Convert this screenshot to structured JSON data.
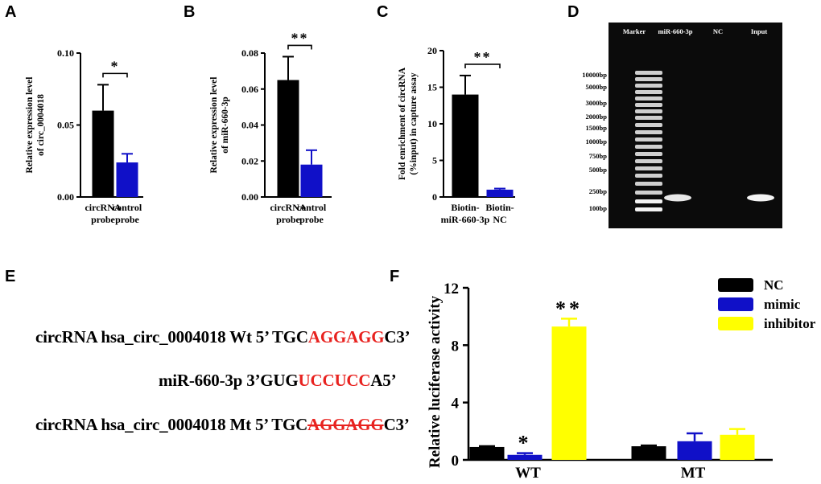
{
  "panel_labels": [
    "A",
    "B",
    "C",
    "D",
    "E",
    "F"
  ],
  "colors": {
    "black": "#000000",
    "blue": "#1010c8",
    "yellow": "#ffff00",
    "red": "#e8221f"
  },
  "chart_data": [
    {
      "panel": "A",
      "type": "bar",
      "categories": [
        [
          "circRNA",
          "probe"
        ],
        [
          "control",
          "probe"
        ]
      ],
      "values": [
        0.06,
        0.024
      ],
      "errors": [
        0.018,
        0.006
      ],
      "colors": [
        "#000000",
        "#1010c8"
      ],
      "ylabel": [
        "Relative expression level",
        "of circ_0004018"
      ],
      "ylim": [
        0,
        0.1
      ],
      "yticks": [
        "0.00",
        "0.05",
        "0.10"
      ],
      "ytick_values": [
        0,
        0.05,
        0.1
      ],
      "significance": "*"
    },
    {
      "panel": "B",
      "type": "bar",
      "categories": [
        [
          "circRNA",
          "probe"
        ],
        [
          "control",
          "probe"
        ]
      ],
      "values": [
        0.065,
        0.018
      ],
      "errors": [
        0.013,
        0.008
      ],
      "colors": [
        "#000000",
        "#1010c8"
      ],
      "ylabel": [
        "Relative expression level",
        "of miR-660-3p"
      ],
      "ylim": [
        0,
        0.08
      ],
      "yticks": [
        "0.00",
        "0.02",
        "0.04",
        "0.06",
        "0.08"
      ],
      "ytick_values": [
        0,
        0.02,
        0.04,
        0.06,
        0.08
      ],
      "significance": "**"
    },
    {
      "panel": "C",
      "type": "bar",
      "categories": [
        [
          "Biotin-",
          "miR-660-3p"
        ],
        [
          "Biotin-",
          "NC"
        ]
      ],
      "values": [
        14,
        1.0
      ],
      "errors": [
        2.6,
        0.15
      ],
      "colors": [
        "#000000",
        "#1010c8"
      ],
      "ylabel": [
        "Fold enrichment of circRNA",
        "(%input) in capture assay"
      ],
      "ylim": [
        0,
        20
      ],
      "yticks": [
        "0",
        "5",
        "10",
        "15",
        "20"
      ],
      "ytick_values": [
        0,
        5,
        10,
        15,
        20
      ],
      "significance": "**"
    },
    {
      "panel": "F",
      "type": "bar",
      "categories": [
        "WT",
        "MT"
      ],
      "series": [
        {
          "name": "NC",
          "values": [
            0.9,
            0.95
          ],
          "errors": [
            0.05,
            0.05
          ],
          "color": "#000000"
        },
        {
          "name": "mimic",
          "values": [
            0.35,
            1.3
          ],
          "errors": [
            0.12,
            0.55
          ],
          "color": "#1010c8"
        },
        {
          "name": "inhibitor",
          "values": [
            9.3,
            1.75
          ],
          "errors": [
            0.55,
            0.4
          ],
          "color": "#ffff00"
        }
      ],
      "significance": [
        "",
        "*",
        "**",
        "",
        "",
        ""
      ],
      "ylabel": "Relative luciferase activity",
      "ylim": [
        0,
        12
      ],
      "yticks": [
        "0",
        "4",
        "8",
        "12"
      ],
      "ytick_values": [
        0,
        4,
        8,
        12
      ],
      "legend_position": "top-right"
    }
  ],
  "gel": {
    "lane_labels": [
      "Marker",
      "miR-660-3p",
      "NC",
      "Input"
    ],
    "ladder_labels": [
      "10000bp",
      "5000bp",
      "3000bp",
      "2000bp",
      "1500bp",
      "1000bp",
      "750bp",
      "500bp",
      "250bp",
      "100bp"
    ]
  },
  "sequences": {
    "wt": {
      "prefix": "circRNA hsa_circ_0004018 Wt 5’ TGC",
      "site": "AGGAGG",
      "suffix": "C3’"
    },
    "mir": {
      "prefix": "miR-660-3p 3’GUG",
      "site": "UCCUCC",
      "suffix": "A5’"
    },
    "mt": {
      "prefix": "circRNA hsa_circ_0004018 Mt 5’ TGC",
      "site": "AGGAGG",
      "suffix": "C3’"
    }
  }
}
